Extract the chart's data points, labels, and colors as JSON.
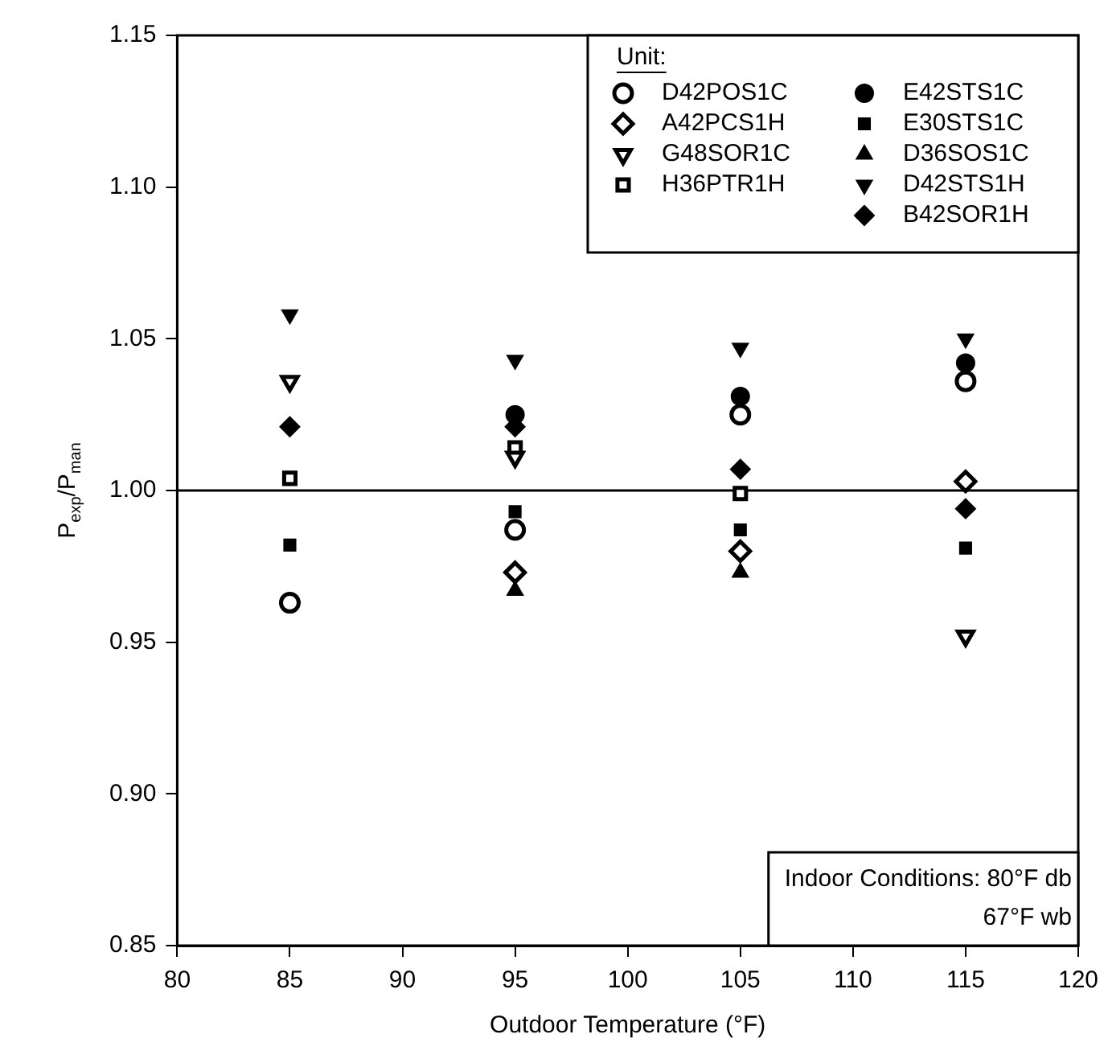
{
  "chart_data": {
    "type": "scatter",
    "xlabel": "Outdoor Temperature (°F)",
    "ylabel": "P$_{exp}$/P$_{man}$",
    "legend_title": "Unit:",
    "legend": "top right",
    "grid": false,
    "xlim": [
      80,
      120
    ],
    "xticks": [
      80,
      85,
      90,
      95,
      100,
      105,
      110,
      115,
      120
    ],
    "ylim": [
      0.85,
      1.15
    ],
    "yticks": [
      {
        "value": 0.85,
        "label": "0.85"
      },
      {
        "value": 0.9,
        "label": "0.90"
      },
      {
        "value": 0.95,
        "label": "0.95"
      },
      {
        "value": 1.0,
        "label": "1.00"
      },
      {
        "value": 1.05,
        "label": "1.05"
      },
      {
        "value": 1.1,
        "label": "1.10"
      },
      {
        "value": 1.15,
        "label": "1.15"
      }
    ],
    "ref_lines": [
      {
        "axis": "y",
        "value": 1.0,
        "color": "#000000"
      }
    ],
    "annotations": [
      "Indoor Conditions: 80°F db",
      "67°F wb"
    ],
    "series": [
      {
        "name": "D42POS1C",
        "color": "#000000",
        "marker": "circle-open",
        "x": [
          85,
          95,
          105,
          115
        ],
        "values": [
          0.963,
          0.987,
          1.025,
          1.036
        ]
      },
      {
        "name": "A42PCS1H",
        "color": "#000000",
        "marker": "diamond-open",
        "x": [
          95,
          105,
          115
        ],
        "values": [
          0.973,
          0.98,
          1.003
        ]
      },
      {
        "name": "G48SOR1C",
        "color": "#000000",
        "marker": "triangle-down-open",
        "x": [
          85,
          95,
          115
        ],
        "values": [
          1.036,
          1.011,
          0.952
        ]
      },
      {
        "name": "H36PTR1H",
        "color": "#000000",
        "marker": "square-open",
        "x": [
          85,
          95,
          105
        ],
        "values": [
          1.004,
          1.014,
          0.999
        ]
      },
      {
        "name": "E42STS1C",
        "color": "#000000",
        "marker": "circle",
        "x": [
          95,
          105,
          115
        ],
        "values": [
          1.025,
          1.031,
          1.042
        ]
      },
      {
        "name": "E30STS1C",
        "color": "#000000",
        "marker": "square",
        "x": [
          85,
          95,
          105,
          115
        ],
        "values": [
          0.982,
          0.993,
          0.987,
          0.981
        ]
      },
      {
        "name": "D36SOS1C",
        "color": "#000000",
        "marker": "triangle",
        "x": [
          95,
          105
        ],
        "values": [
          0.967,
          0.973
        ]
      },
      {
        "name": "D42STS1H",
        "color": "#000000",
        "marker": "triangle-down",
        "x": [
          85,
          95,
          105,
          115
        ],
        "values": [
          1.058,
          1.043,
          1.047,
          1.05
        ]
      },
      {
        "name": "B42SOR1H",
        "color": "#000000",
        "marker": "diamond",
        "x": [
          85,
          95,
          105,
          115
        ],
        "values": [
          1.021,
          1.021,
          1.007,
          0.994
        ]
      }
    ]
  }
}
